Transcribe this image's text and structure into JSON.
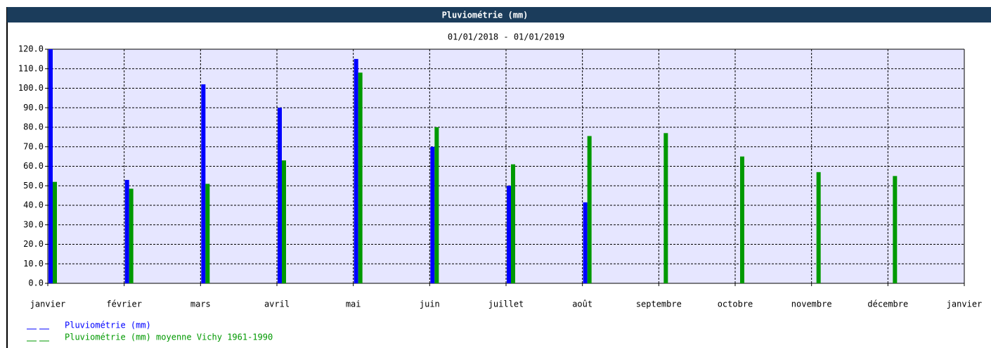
{
  "chart_data": {
    "type": "bar",
    "title": "Pluviométrie (mm)",
    "subtitle": "01/01/2018 - 01/01/2019",
    "categories": [
      "janvier",
      "février",
      "mars",
      "avril",
      "mai",
      "juin",
      "juillet",
      "août",
      "septembre",
      "octobre",
      "novembre",
      "décembre",
      "janvier"
    ],
    "series": [
      {
        "name": "Pluviométrie (mm)",
        "color": "#0000ff",
        "values": [
          120,
          53,
          102,
          90,
          115,
          70,
          50,
          41.5,
          null,
          null,
          null,
          null,
          null
        ]
      },
      {
        "name": "Pluviométrie (mm) moyenne Vichy 1961-1990",
        "color": "#009900",
        "values": [
          52,
          48.5,
          51,
          63,
          108,
          80,
          61,
          75.5,
          77,
          65,
          57,
          55,
          null
        ]
      }
    ],
    "ylim": [
      0,
      120
    ],
    "yticks": [
      {
        "value": 0,
        "label": "0.0"
      },
      {
        "value": 10,
        "label": "10.0"
      },
      {
        "value": 20,
        "label": "20.0"
      },
      {
        "value": 30,
        "label": "30.0"
      },
      {
        "value": 40,
        "label": "40.0"
      },
      {
        "value": 50,
        "label": "50.0"
      },
      {
        "value": 60,
        "label": "60.0"
      },
      {
        "value": 70,
        "label": "70.0"
      },
      {
        "value": 80,
        "label": "80.0"
      },
      {
        "value": 90,
        "label": "90.0"
      },
      {
        "value": 100,
        "label": "100.0"
      },
      {
        "value": 110,
        "label": "110.0"
      },
      {
        "value": 120,
        "label": "120.0"
      }
    ],
    "grid": true
  }
}
